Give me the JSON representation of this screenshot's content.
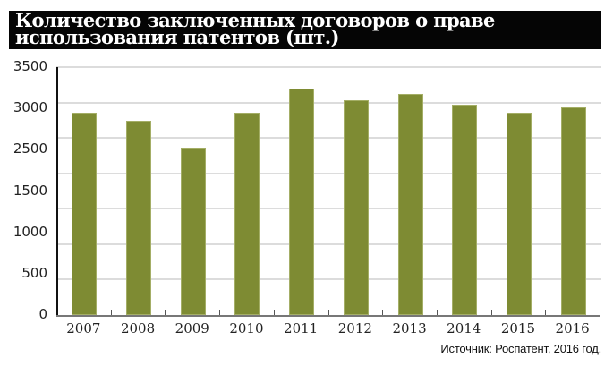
{
  "title": {
    "line1": "Количество заключенных договоров о праве",
    "line2": "использования патентов (шт.)"
  },
  "source": "Источник: Роспатент, 2016 год.",
  "colors": {
    "bar": "#7e8b33",
    "title_bg": "#050505",
    "title_text": "#ffffff",
    "grid": "#dcdcdc"
  },
  "y_axis_labels": [
    "3500",
    "3000",
    "2500",
    "1500",
    "1000",
    "500",
    "0"
  ],
  "chart_data": {
    "type": "bar",
    "title": "Количество заключенных договоров о праве использования патентов (шт.)",
    "xlabel": "",
    "ylabel": "",
    "categories": [
      "2007",
      "2008",
      "2009",
      "2010",
      "2011",
      "2012",
      "2013",
      "2014",
      "2015",
      "2016"
    ],
    "values": [
      2850,
      2740,
      2360,
      2860,
      3200,
      3035,
      3120,
      2965,
      2860,
      2935
    ],
    "ylim": [
      0,
      3500
    ],
    "y_tick_labels": [
      "0",
      "500",
      "1000",
      "1500",
      "2500",
      "3000",
      "3500"
    ],
    "gridlines": [
      0,
      500,
      1000,
      1500,
      2000,
      2500,
      3000,
      3500
    ],
    "grid": true,
    "legend": null,
    "annotations": [
      "Источник: Роспатент, 2016 год."
    ]
  }
}
